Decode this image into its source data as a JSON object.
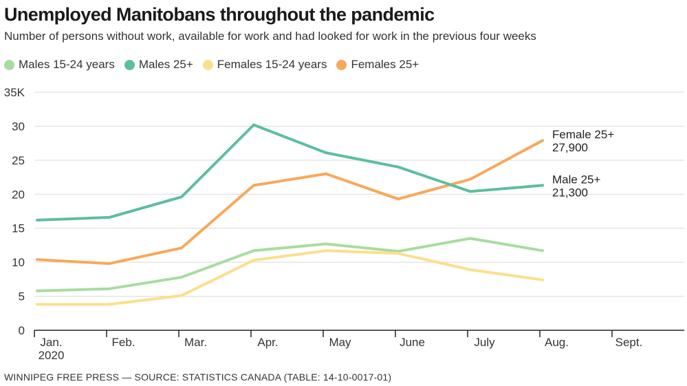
{
  "colors": {
    "males_15_24": "#a8dca0",
    "males_25": "#5cbf9c",
    "females_15_24": "#fae08c",
    "females_25": "#f8a85a",
    "grid": "#d9d9d9",
    "axis": "#222222"
  },
  "chart_data": {
    "type": "line",
    "title": "Unemployed Manitobans throughout the pandemic",
    "subtitle": "Number of persons without work, available for work and had looked for work in the previous four weeks",
    "x_labels": [
      "Jan.",
      "Feb.",
      "Mar.",
      "Apr.",
      "May",
      "June",
      "July",
      "Aug.",
      "Sept."
    ],
    "x_sublabel": "2020",
    "y_ticks": [
      "0",
      "5",
      "10",
      "15",
      "20",
      "25",
      "30",
      "35K"
    ],
    "y_tick_values": [
      0,
      5,
      10,
      15,
      20,
      25,
      30,
      35
    ],
    "ylim": [
      0,
      35
    ],
    "grid": true,
    "legend_position": "top-left",
    "series": [
      {
        "key": "males_15_24",
        "name": "Males 15-24 years",
        "values": [
          5.8,
          6.1,
          7.8,
          11.7,
          12.7,
          11.6,
          13.5,
          11.7
        ]
      },
      {
        "key": "males_25",
        "name": "Males 25+",
        "values": [
          16.2,
          16.6,
          19.6,
          30.2,
          26.1,
          24.0,
          20.4,
          21.3
        ]
      },
      {
        "key": "females_15_24",
        "name": "Females 15-24 years",
        "values": [
          3.8,
          3.8,
          5.1,
          10.3,
          11.7,
          11.3,
          8.9,
          7.4
        ]
      },
      {
        "key": "females_25",
        "name": "Females 25+",
        "values": [
          10.4,
          9.8,
          12.1,
          21.3,
          23.0,
          19.3,
          22.2,
          27.9
        ]
      }
    ],
    "annotations": [
      {
        "series": "females_25",
        "line1": "Female 25+",
        "line2": "27,900"
      },
      {
        "series": "males_25",
        "line1": "Male 25+",
        "line2": "21,300"
      }
    ]
  },
  "source": "WINNIPEG FREE PRESS — SOURCE: STATISTICS CANADA (TABLE: 14-10-0017-01)"
}
